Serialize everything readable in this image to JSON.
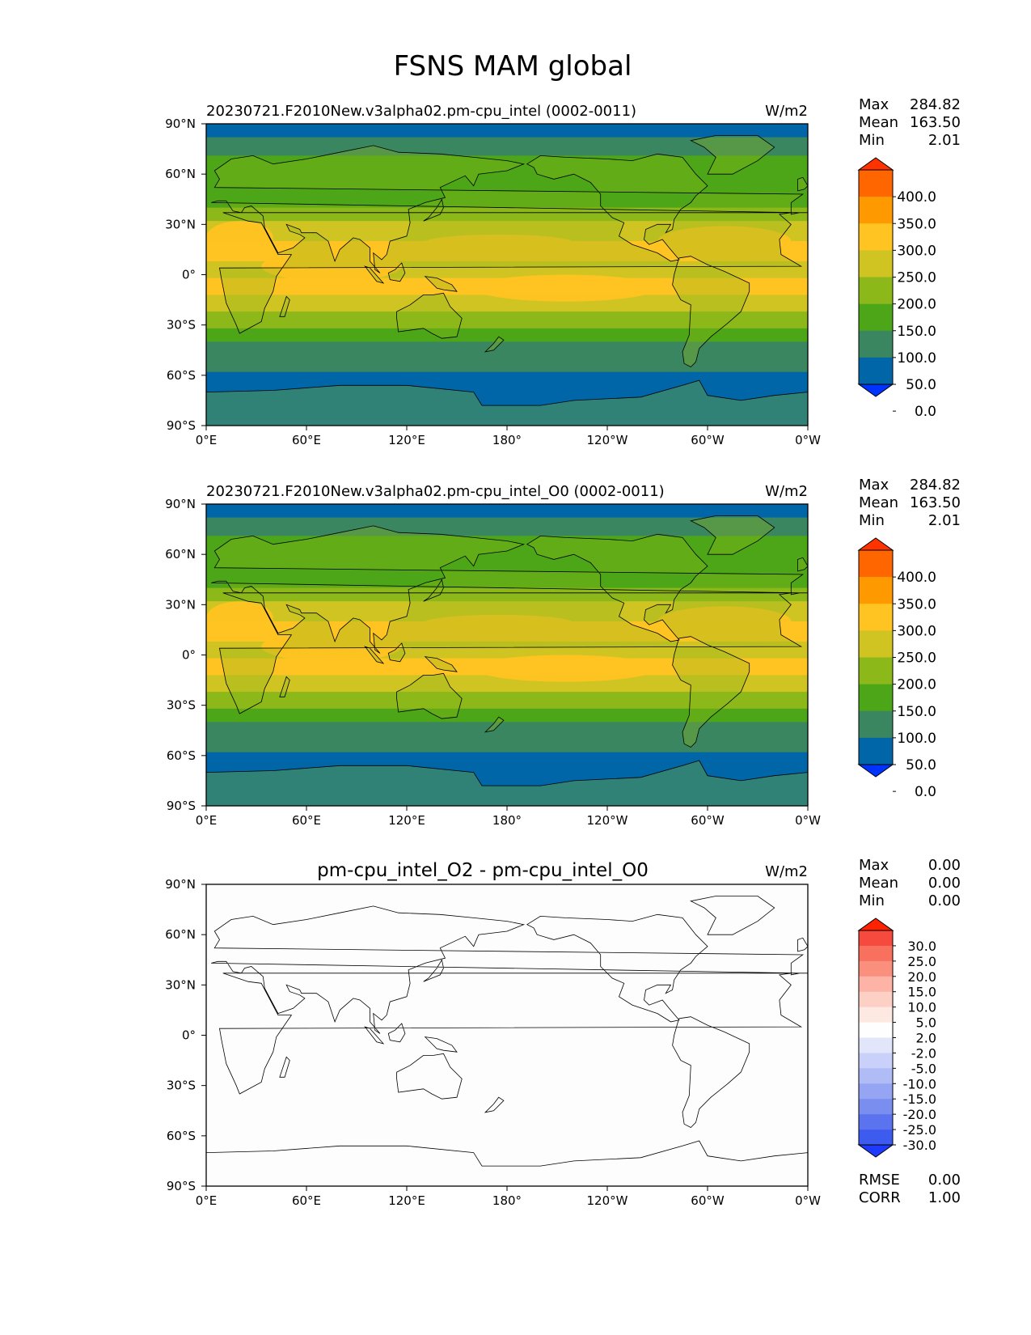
{
  "chart_data": {
    "title": "FSNS MAM global",
    "x_ticks": [
      "0°E",
      "60°E",
      "120°E",
      "180°",
      "120°W",
      "60°W",
      "0°W"
    ],
    "y_ticks": [
      "90°N",
      "60°N",
      "30°N",
      "0°",
      "30°S",
      "60°S",
      "90°S"
    ],
    "panels": [
      {
        "type": "heatmap",
        "title": "20230721.F2010New.v3alpha02.pm-cpu_intel (0002-0011)",
        "units": "W/m2",
        "stats": [
          {
            "label": "Max",
            "value": "284.82"
          },
          {
            "label": "Mean",
            "value": "163.50"
          },
          {
            "label": "Min",
            "value": "2.01"
          }
        ],
        "colorbar": {
          "levels": [
            "400.0",
            "350.0",
            "300.0",
            "250.0",
            "200.0",
            "150.0",
            "100.0",
            "50.0",
            "0.0"
          ],
          "colors": [
            "#ff3300",
            "#ff6600",
            "#ff9900",
            "#ffc422",
            "#d0c422",
            "#8cb81a",
            "#4ca618",
            "#3a8661",
            "#0066a8",
            "#0033ff"
          ]
        }
      },
      {
        "type": "heatmap",
        "title": "20230721.F2010New.v3alpha02.pm-cpu_intel_O0 (0002-0011)",
        "units": "W/m2",
        "stats": [
          {
            "label": "Max",
            "value": "284.82"
          },
          {
            "label": "Mean",
            "value": "163.50"
          },
          {
            "label": "Min",
            "value": "2.01"
          }
        ],
        "colorbar": {
          "levels": [
            "400.0",
            "350.0",
            "300.0",
            "250.0",
            "200.0",
            "150.0",
            "100.0",
            "50.0",
            "0.0"
          ],
          "colors": [
            "#ff3300",
            "#ff6600",
            "#ff9900",
            "#ffc422",
            "#d0c422",
            "#8cb81a",
            "#4ca618",
            "#3a8661",
            "#0066a8",
            "#0033ff"
          ]
        }
      },
      {
        "type": "heatmap",
        "title": "pm-cpu_intel_O2 - pm-cpu_intel_O0",
        "units": "W/m2",
        "stats": [
          {
            "label": "Max",
            "value": "0.00"
          },
          {
            "label": "Mean",
            "value": "0.00"
          },
          {
            "label": "Min",
            "value": "0.00"
          }
        ],
        "colorbar": {
          "levels": [
            "30.0",
            "25.0",
            "20.0",
            "15.0",
            "10.0",
            "5.0",
            "2.0",
            "-2.0",
            "-5.0",
            "-10.0",
            "-15.0",
            "-20.0",
            "-25.0",
            "-30.0"
          ],
          "colors": [
            "#ff2200",
            "#f64a3e",
            "#f8705e",
            "#fb8f7d",
            "#fdb3a5",
            "#fdd0c6",
            "#fde8e2",
            "#fefefe",
            "#e2e6fb",
            "#c9d1fa",
            "#b0bcf6",
            "#95a4f3",
            "#7a8ef0",
            "#5b73ef",
            "#3d5bef",
            "#1f3aff"
          ]
        },
        "footer": [
          {
            "label": "RMSE",
            "value": "0.00"
          },
          {
            "label": "CORR",
            "value": "1.00"
          }
        ]
      }
    ]
  }
}
